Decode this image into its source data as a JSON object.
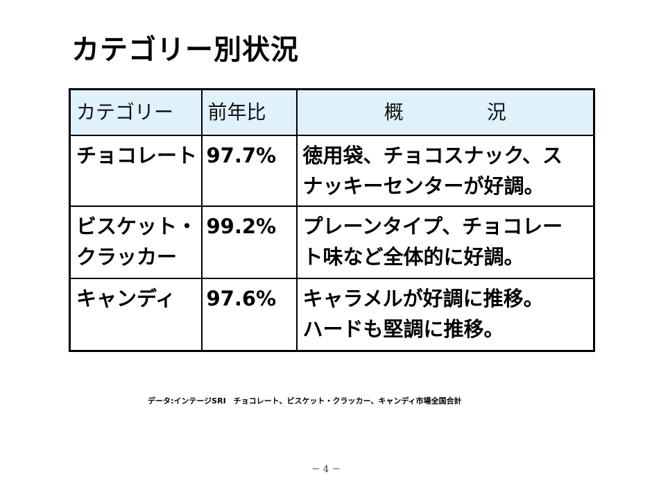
{
  "page": {
    "title": "カテゴリー別状況"
  },
  "table": {
    "headers": {
      "category": "カテゴリー",
      "ratio": "前年比",
      "overview_left": "概",
      "overview_right": "況"
    },
    "rows": [
      {
        "category": "チョコレート",
        "ratio": "97.7%",
        "overview": [
          "徳用袋、チョコスナック、ス",
          "ナッキーセンターが好調。"
        ]
      },
      {
        "category": "ビスケット・\nクラッカー",
        "ratio": "99.2%",
        "overview": [
          "プレーンタイプ、チョコレー",
          "ト味など全体的に好調。"
        ]
      },
      {
        "category": "キャンディ",
        "ratio": "97.6%",
        "overview": [
          "キャラメルが好調に推移。",
          "ハードも堅調に推移。"
        ]
      }
    ]
  },
  "footer": {
    "source_note": "データ:インテージSRI　チョコレート、ビスケット・クラッカー、キャンディ市場全国合計",
    "page_number": "－ 4 －"
  }
}
